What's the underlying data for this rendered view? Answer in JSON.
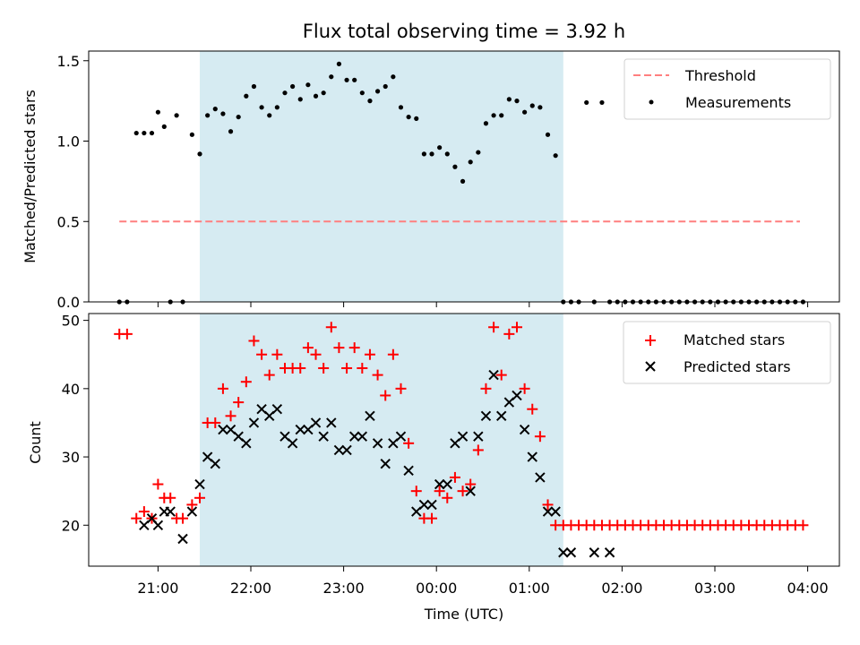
{
  "chart_data": {
    "type": "scatter",
    "title": "Flux total observing time = 3.92 h",
    "xlabel": "Time (UTC)",
    "x_ticks": [
      "21:00",
      "22:00",
      "23:00",
      "00:00",
      "01:00",
      "02:00",
      "03:00",
      "04:00"
    ],
    "shaded_span": {
      "start": "21:27",
      "end": "01:22",
      "color": "#add8e6"
    },
    "panels": [
      {
        "id": "ratio",
        "ylabel": "Matched/Predicted stars",
        "ylim": [
          0,
          1.56
        ],
        "yticks": [
          "0.0",
          "0.5",
          "1.0",
          "1.5"
        ],
        "legend_position": "top-right",
        "series": [
          {
            "name": "Threshold",
            "kind": "line",
            "style": "dashed",
            "color": "#ff7f7f",
            "x": [
              "20:35",
              "03:55"
            ],
            "y": [
              0.5,
              0.5
            ]
          },
          {
            "name": "Measurements",
            "kind": "dots",
            "color": "#000000",
            "x": [
              "20:35",
              "20:40",
              "20:46",
              "20:51",
              "20:56",
              "21:00",
              "21:04",
              "21:08",
              "21:12",
              "21:16",
              "21:22",
              "21:27",
              "21:32",
              "21:37",
              "21:42",
              "21:47",
              "21:52",
              "21:57",
              "22:02",
              "22:07",
              "22:12",
              "22:17",
              "22:22",
              "22:27",
              "22:32",
              "22:37",
              "22:42",
              "22:47",
              "22:52",
              "22:57",
              "23:02",
              "23:07",
              "23:12",
              "23:17",
              "23:22",
              "23:27",
              "23:32",
              "23:37",
              "23:42",
              "23:47",
              "23:52",
              "23:57",
              "00:02",
              "00:07",
              "00:12",
              "00:17",
              "00:22",
              "00:27",
              "00:32",
              "00:37",
              "00:42",
              "00:47",
              "00:52",
              "00:57",
              "01:02",
              "01:07",
              "01:12",
              "01:17",
              "01:22",
              "01:27",
              "01:32",
              "01:37",
              "01:42",
              "01:47",
              "01:52",
              "01:57",
              "02:02",
              "02:07",
              "02:12",
              "02:17",
              "02:22",
              "02:27",
              "02:32",
              "02:37",
              "02:42",
              "02:47",
              "02:52",
              "02:57",
              "03:02",
              "03:07",
              "03:12",
              "03:17",
              "03:22",
              "03:27",
              "03:32",
              "03:37",
              "03:42",
              "03:47",
              "03:52",
              "03:57"
            ],
            "y": [
              0,
              0,
              1.05,
              1.05,
              1.05,
              1.18,
              1.09,
              0,
              1.16,
              0,
              1.04,
              0.92,
              1.16,
              1.2,
              1.17,
              1.06,
              1.15,
              1.28,
              1.34,
              1.21,
              1.16,
              1.21,
              1.3,
              1.34,
              1.26,
              1.35,
              1.28,
              1.3,
              1.4,
              1.48,
              1.38,
              1.38,
              1.3,
              1.25,
              1.31,
              1.34,
              1.4,
              1.21,
              1.15,
              1.14,
              0.92,
              0.92,
              0.96,
              0.92,
              0.84,
              0.75,
              0.87,
              0.93,
              1.11,
              1.16,
              1.16,
              1.26,
              1.25,
              1.18,
              1.22,
              1.21,
              1.04,
              0.91,
              0,
              0,
              0,
              1.24,
              0,
              1.24,
              0,
              0,
              0,
              0,
              0,
              0,
              0,
              0,
              0,
              0,
              0,
              0,
              0,
              0,
              0,
              0,
              0,
              0,
              0,
              0,
              0,
              0,
              0,
              0,
              0,
              0
            ]
          }
        ]
      },
      {
        "id": "count",
        "ylabel": "Count",
        "ylim": [
          14,
          51
        ],
        "yticks": [
          "20",
          "30",
          "40",
          "50"
        ],
        "legend_position": "top-right",
        "series": [
          {
            "name": "Matched stars",
            "marker": "+",
            "color": "#ff0000",
            "x": [
              "20:35",
              "20:40",
              "20:46",
              "20:51",
              "20:56",
              "21:00",
              "21:04",
              "21:08",
              "21:12",
              "21:16",
              "21:22",
              "21:27",
              "21:32",
              "21:37",
              "21:42",
              "21:47",
              "21:52",
              "21:57",
              "22:02",
              "22:07",
              "22:12",
              "22:17",
              "22:22",
              "22:27",
              "22:32",
              "22:37",
              "22:42",
              "22:47",
              "22:52",
              "22:57",
              "23:02",
              "23:07",
              "23:12",
              "23:17",
              "23:22",
              "23:27",
              "23:32",
              "23:37",
              "23:42",
              "23:47",
              "23:52",
              "23:57",
              "00:02",
              "00:07",
              "00:12",
              "00:17",
              "00:22",
              "00:27",
              "00:32",
              "00:37",
              "00:42",
              "00:47",
              "00:52",
              "00:57",
              "01:02",
              "01:07",
              "01:12",
              "01:17",
              "01:22",
              "01:27",
              "01:32",
              "01:37",
              "01:42",
              "01:47",
              "01:52",
              "01:57",
              "02:02",
              "02:07",
              "02:12",
              "02:17",
              "02:22",
              "02:27",
              "02:32",
              "02:37",
              "02:42",
              "02:47",
              "02:52",
              "02:57",
              "03:02",
              "03:07",
              "03:12",
              "03:17",
              "03:22",
              "03:27",
              "03:32",
              "03:37",
              "03:42",
              "03:47",
              "03:52",
              "03:57"
            ],
            "y": [
              48,
              48,
              21,
              22,
              21,
              26,
              24,
              24,
              21,
              21,
              23,
              24,
              35,
              35,
              40,
              36,
              38,
              41,
              47,
              45,
              42,
              45,
              43,
              43,
              43,
              46,
              45,
              43,
              49,
              46,
              43,
              46,
              43,
              45,
              42,
              39,
              45,
              40,
              32,
              25,
              21,
              21,
              25,
              24,
              27,
              25,
              26,
              31,
              40,
              49,
              42,
              48,
              49,
              40,
              37,
              33,
              23,
              20,
              20,
              20,
              20,
              20,
              20,
              20,
              20,
              20,
              20,
              20,
              20,
              20,
              20,
              20,
              20,
              20,
              20,
              20,
              20,
              20,
              20,
              20,
              20,
              20,
              20,
              20,
              20,
              20,
              20,
              20,
              20,
              20
            ]
          },
          {
            "name": "Predicted stars",
            "marker": "x",
            "color": "#000000",
            "x": [
              "20:51",
              "20:56",
              "21:00",
              "21:04",
              "21:08",
              "21:16",
              "21:22",
              "21:27",
              "21:32",
              "21:37",
              "21:42",
              "21:47",
              "21:52",
              "21:57",
              "22:02",
              "22:07",
              "22:12",
              "22:17",
              "22:22",
              "22:27",
              "22:32",
              "22:37",
              "22:42",
              "22:47",
              "22:52",
              "22:57",
              "23:02",
              "23:07",
              "23:12",
              "23:17",
              "23:22",
              "23:27",
              "23:32",
              "23:37",
              "23:42",
              "23:47",
              "23:52",
              "23:57",
              "00:02",
              "00:07",
              "00:12",
              "00:17",
              "00:22",
              "00:27",
              "00:32",
              "00:37",
              "00:42",
              "00:47",
              "00:52",
              "00:57",
              "01:02",
              "01:07",
              "01:12",
              "01:17",
              "01:22",
              "01:27",
              "01:42",
              "01:52"
            ],
            "y": [
              20,
              21,
              20,
              22,
              22,
              18,
              22,
              26,
              30,
              29,
              34,
              34,
              33,
              32,
              35,
              37,
              36,
              37,
              33,
              32,
              34,
              34,
              35,
              33,
              35,
              31,
              31,
              33,
              33,
              36,
              32,
              29,
              32,
              33,
              28,
              22,
              23,
              23,
              26,
              26,
              32,
              33,
              25,
              33,
              36,
              42,
              36,
              38,
              39,
              34,
              30,
              27,
              22,
              22,
              16,
              16,
              16,
              16
            ]
          }
        ]
      }
    ]
  }
}
